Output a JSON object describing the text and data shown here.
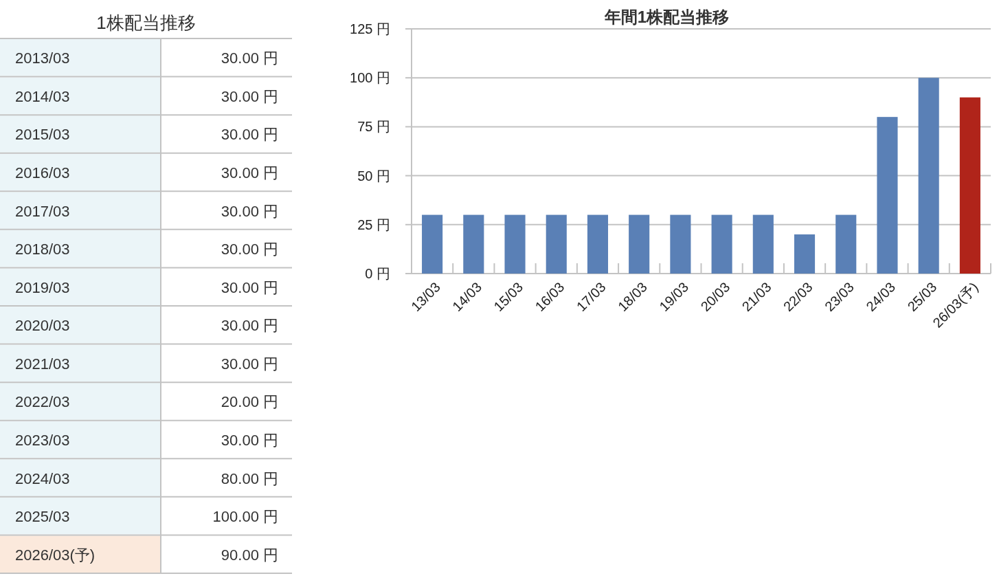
{
  "chart_data": [
    {
      "type": "other",
      "title": "1株配当推移",
      "categories": [
        "2013/03",
        "2014/03",
        "2015/03",
        "2016/03",
        "2017/03",
        "2018/03",
        "2019/03",
        "2020/03",
        "2021/03",
        "2022/03",
        "2023/03",
        "2024/03",
        "2025/03",
        "2026/03(予)"
      ],
      "value_labels": [
        "30.00 円",
        "30.00 円",
        "30.00 円",
        "30.00 円",
        "30.00 円",
        "30.00 円",
        "30.00 円",
        "30.00 円",
        "30.00 円",
        "20.00 円",
        "30.00 円",
        "80.00 円",
        "100.00 円",
        "90.00 円"
      ],
      "colors": [
        "#ebf5f8",
        "#ebf5f8",
        "#ebf5f8",
        "#ebf5f8",
        "#ebf5f8",
        "#ebf5f8",
        "#ebf5f8",
        "#ebf5f8",
        "#ebf5f8",
        "#ebf5f8",
        "#ebf5f8",
        "#ebf5f8",
        "#ebf5f8",
        "#fbe9dc"
      ]
    },
    {
      "type": "bar",
      "title": "年間1株配当推移",
      "categories": [
        "13/03",
        "14/03",
        "15/03",
        "16/03",
        "17/03",
        "18/03",
        "19/03",
        "20/03",
        "21/03",
        "22/03",
        "23/03",
        "24/03",
        "25/03",
        "26/03(予)"
      ],
      "values": [
        30,
        30,
        30,
        30,
        30,
        30,
        30,
        30,
        30,
        20,
        30,
        80,
        100,
        90
      ],
      "colors": [
        "#5a80b6",
        "#5a80b6",
        "#5a80b6",
        "#5a80b6",
        "#5a80b6",
        "#5a80b6",
        "#5a80b6",
        "#5a80b6",
        "#5a80b6",
        "#5a80b6",
        "#5a80b6",
        "#5a80b6",
        "#5a80b6",
        "#b0241a"
      ],
      "ylim": [
        0,
        125
      ],
      "yticks": [
        {
          "value": 0,
          "label": "0 円"
        },
        {
          "value": 25,
          "label": "25 円"
        },
        {
          "value": 50,
          "label": "50 円"
        },
        {
          "value": 75,
          "label": "75 円"
        },
        {
          "value": 100,
          "label": "100 円"
        },
        {
          "value": 125,
          "label": "125 円"
        }
      ],
      "grid": "y"
    }
  ]
}
